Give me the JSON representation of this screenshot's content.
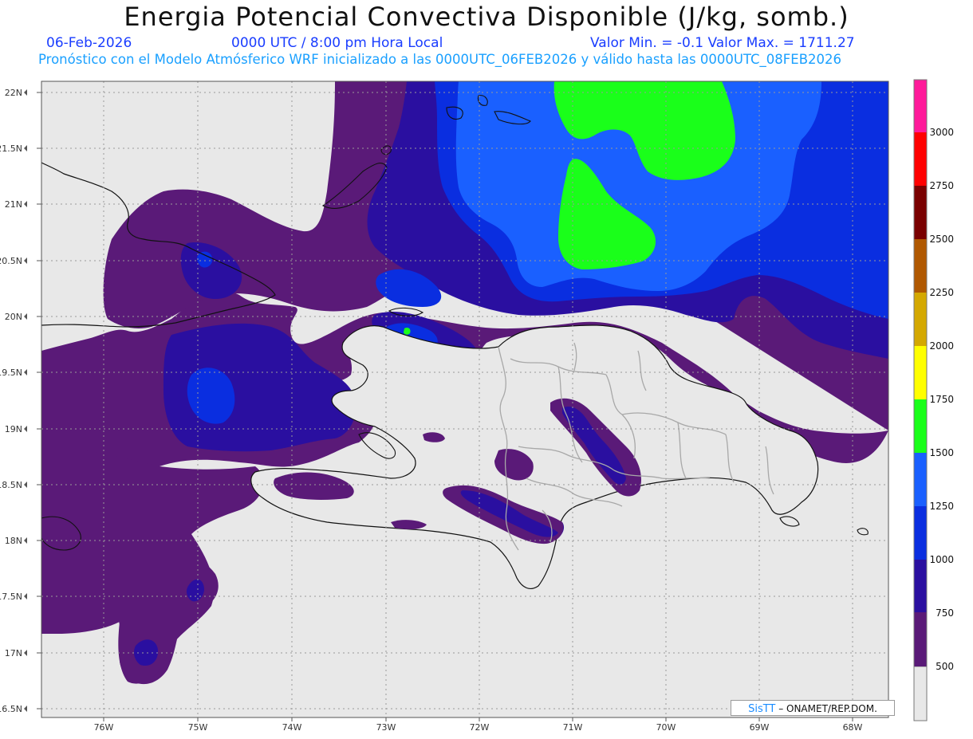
{
  "header": {
    "title": "Energia Potencial Convectiva Disponible (J/kg, somb.)",
    "date": "06-Feb-2026",
    "time": "0000 UTC / 8:00 pm Hora Local",
    "minmax": "Valor Min. = -0.1  Valor Max. = 1711.27",
    "model_info": "Pronóstico con el Modelo Atmósferico WRF inicializado a las 0000UTC_06FEB2026 y válido hasta las  0000UTC_08FEB2026"
  },
  "axes": {
    "lat_ticks": [
      "22N",
      "21.5N",
      "21N",
      "20.5N",
      "20N",
      "19.5N",
      "19N",
      "18.5N",
      "18N",
      "17.5N",
      "17N",
      "16.5N"
    ],
    "lon_ticks": [
      "76W",
      "75W",
      "74W",
      "73W",
      "72W",
      "71W",
      "70W",
      "69W",
      "68W"
    ]
  },
  "colorbar": {
    "labels": [
      "500",
      "750",
      "1000",
      "1250",
      "1500",
      "1750",
      "2000",
      "2250",
      "2500",
      "2750",
      "3000"
    ],
    "colors": [
      "#e8e8e8",
      "#5a1a78",
      "#2a0fa0",
      "#0a2ee0",
      "#1a60ff",
      "#1aff1a",
      "#ffff00",
      "#d4a800",
      "#b05800",
      "#7a0000",
      "#ff0000",
      "#ff1a9a"
    ]
  },
  "legend_colors": {
    "background": "#e8e8e8",
    "purple_500": "#5a1a78",
    "indigo_750": "#2a0fa0",
    "blue_1000": "#0a2ee0",
    "blue_1250": "#1a60ff",
    "green_1500": "#1aff1a"
  },
  "credit": {
    "brand": "SisTT",
    "text": " – ONAMET/REP.DOM."
  }
}
